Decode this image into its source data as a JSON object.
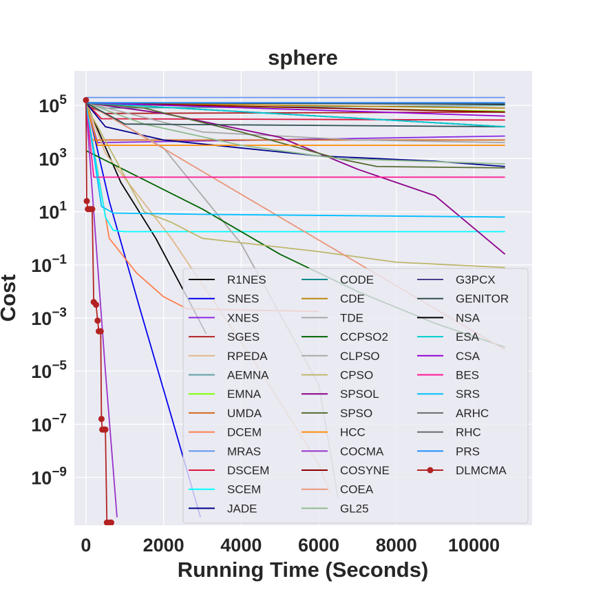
{
  "chart_data": {
    "type": "line",
    "title": "sphere",
    "xlabel": "Running Time (Seconds)",
    "ylabel": "Cost",
    "xlim": [
      -300,
      11500
    ],
    "ylim_log10": [
      -10.8,
      6.3
    ],
    "yscale": "log",
    "xticks": [
      0,
      2000,
      4000,
      6000,
      8000,
      10000
    ],
    "yticks": [
      {
        "exp": 5,
        "base": "10",
        "sup": "5"
      },
      {
        "exp": 3,
        "base": "10",
        "sup": "3"
      },
      {
        "exp": 1,
        "base": "10",
        "sup": "1"
      },
      {
        "exp": -1,
        "base": "10",
        "sup": "−1"
      },
      {
        "exp": -3,
        "base": "10",
        "sup": "−3"
      },
      {
        "exp": -5,
        "base": "10",
        "sup": "−5"
      },
      {
        "exp": -7,
        "base": "10",
        "sup": "−7"
      },
      {
        "exp": -9,
        "base": "10",
        "sup": "−9"
      }
    ],
    "grid": true,
    "legend_position": "lower-right",
    "legend_columns": 3,
    "series": [
      {
        "name": "R1NES",
        "color": "#000000",
        "points": [
          [
            0,
            5.1
          ],
          [
            900,
            2.1
          ],
          [
            1800,
            0
          ],
          [
            2600,
            -2.2
          ],
          [
            3100,
            -3.6
          ]
        ]
      },
      {
        "name": "SNES",
        "color": "#0000ee",
        "points": [
          [
            0,
            5.2
          ],
          [
            600,
            1.4
          ],
          [
            1400,
            -2.7
          ],
          [
            2200,
            -6.7
          ],
          [
            2950,
            -10.5
          ]
        ]
      },
      {
        "name": "XNES",
        "color": "#8a2be2",
        "points": [
          [
            0,
            5.1
          ],
          [
            300,
            3.6
          ],
          [
            10800,
            3.85
          ]
        ]
      },
      {
        "name": "SGES",
        "color": "#b22222",
        "points": [
          [
            0,
            5.0
          ],
          [
            500,
            4.7
          ],
          [
            10800,
            4.75
          ]
        ]
      },
      {
        "name": "RPEDA",
        "color": "#deb887",
        "points": [
          [
            0,
            5.1
          ],
          [
            500,
            3.2
          ],
          [
            2200,
            0
          ],
          [
            4500,
            -5
          ],
          [
            6000,
            -8.5
          ],
          [
            6300,
            -9.6
          ]
        ]
      },
      {
        "name": "AEMNA",
        "color": "#5f9ea0",
        "points": [
          [
            0,
            5.1
          ],
          [
            500,
            4.9
          ],
          [
            10800,
            5.0
          ]
        ]
      },
      {
        "name": "EMNA",
        "color": "#7fff00",
        "points": [
          [
            0,
            5.1
          ],
          [
            200,
            5.05
          ],
          [
            10800,
            4.78
          ]
        ]
      },
      {
        "name": "UMDA",
        "color": "#d2691e",
        "points": [
          [
            0,
            5.1
          ],
          [
            150,
            3.7
          ],
          [
            10800,
            3.7
          ]
        ]
      },
      {
        "name": "DCEM",
        "color": "#ff7f50",
        "points": [
          [
            0,
            5.1
          ],
          [
            600,
            0
          ],
          [
            1300,
            -1.3
          ],
          [
            2000,
            -2.2
          ],
          [
            2600,
            -2.65
          ],
          [
            4000,
            -2.7
          ],
          [
            6000,
            -2.75
          ]
        ]
      },
      {
        "name": "MRAS",
        "color": "#6495ed",
        "points": [
          [
            0,
            5.3
          ],
          [
            10800,
            5.3
          ]
        ]
      },
      {
        "name": "DSCEM",
        "color": "#dc143c",
        "points": [
          [
            0,
            5.1
          ],
          [
            400,
            4.5
          ],
          [
            10800,
            4.45
          ]
        ]
      },
      {
        "name": "SCEM",
        "color": "#00ffff",
        "points": [
          [
            0,
            5.0
          ],
          [
            500,
            0.8
          ],
          [
            700,
            0.3
          ],
          [
            1000,
            0.25
          ],
          [
            10800,
            0.25
          ]
        ]
      },
      {
        "name": "JADE",
        "color": "#00008b",
        "points": [
          [
            0,
            5.1
          ],
          [
            500,
            4.2
          ],
          [
            2000,
            3.7
          ],
          [
            6000,
            3.1
          ],
          [
            9000,
            2.9
          ],
          [
            10800,
            2.7
          ]
        ]
      },
      {
        "name": "CODE",
        "color": "#008b8b",
        "points": [
          [
            0,
            5.1
          ],
          [
            10800,
            4.2
          ]
        ]
      },
      {
        "name": "CDE",
        "color": "#b8860b",
        "points": [
          [
            0,
            5.1
          ],
          [
            10800,
            4.9
          ]
        ]
      },
      {
        "name": "TDE",
        "color": "#a9a9a9",
        "points": [
          [
            0,
            5.1
          ],
          [
            2000,
            3.4
          ],
          [
            4000,
            -0.2
          ],
          [
            6000,
            -5.5
          ],
          [
            6500,
            -9.8
          ]
        ]
      },
      {
        "name": "CCPSO2",
        "color": "#006400",
        "points": [
          [
            0,
            3.3
          ],
          [
            1500,
            2.2
          ],
          [
            3000,
            1.1
          ],
          [
            5000,
            -0.6
          ],
          [
            7000,
            -2
          ],
          [
            9000,
            -3.2
          ],
          [
            10800,
            -4.1
          ]
        ]
      },
      {
        "name": "CLPSO",
        "color": "#a9a9a9",
        "points": [
          [
            0,
            5.1
          ],
          [
            3000,
            4.0
          ],
          [
            7000,
            3.7
          ],
          [
            10800,
            3.6
          ]
        ]
      },
      {
        "name": "CPSO",
        "color": "#bdb76b",
        "points": [
          [
            0,
            5.0
          ],
          [
            1500,
            1.0
          ],
          [
            2200,
            0.6
          ],
          [
            3000,
            0
          ],
          [
            6000,
            -0.5
          ],
          [
            8000,
            -0.9
          ],
          [
            10800,
            -1.1
          ]
        ]
      },
      {
        "name": "SPSOL",
        "color": "#8b008b",
        "points": [
          [
            0,
            5.1
          ],
          [
            2000,
            4.7
          ],
          [
            5000,
            3.8
          ],
          [
            7000,
            2.6
          ],
          [
            9000,
            1.6
          ],
          [
            10800,
            -0.6
          ]
        ]
      },
      {
        "name": "SPSO",
        "color": "#556b2f",
        "points": [
          [
            0,
            5.1
          ],
          [
            1500,
            4.9
          ],
          [
            4000,
            4.0
          ],
          [
            6500,
            3.0
          ],
          [
            7500,
            2.7
          ],
          [
            10800,
            2.65
          ]
        ]
      },
      {
        "name": "HCC",
        "color": "#ff8c00",
        "points": [
          [
            0,
            5.1
          ],
          [
            300,
            3.5
          ],
          [
            10800,
            3.5
          ]
        ]
      },
      {
        "name": "COCMA",
        "color": "#9932cc",
        "points": [
          [
            0,
            5.0
          ],
          [
            250,
            0
          ],
          [
            500,
            -5
          ],
          [
            800,
            -10.5
          ]
        ]
      },
      {
        "name": "COSYNE",
        "color": "#8b0000",
        "points": [
          [
            0,
            5.1
          ],
          [
            10800,
            4.75
          ]
        ]
      },
      {
        "name": "COEA",
        "color": "#e9967a",
        "points": [
          [
            0,
            5.1
          ],
          [
            10800,
            -4.2
          ]
        ]
      },
      {
        "name": "GL25",
        "color": "#8fbc8f",
        "points": [
          [
            0,
            5.1
          ],
          [
            1500,
            4.3
          ],
          [
            4000,
            3.5
          ],
          [
            6500,
            3.0
          ],
          [
            10800,
            2.8
          ]
        ]
      },
      {
        "name": "G3PCX",
        "color": "#483d8b",
        "points": [
          [
            0,
            5.1
          ],
          [
            10800,
            4.2
          ]
        ]
      },
      {
        "name": "GENITOR",
        "color": "#2f4f4f",
        "points": [
          [
            0,
            5.1
          ],
          [
            1000,
            4.3
          ],
          [
            10800,
            4.2
          ]
        ]
      },
      {
        "name": "NSA",
        "color": "#000000",
        "points": [
          [
            0,
            5.1
          ],
          [
            10800,
            5.05
          ]
        ]
      },
      {
        "name": "ESA",
        "color": "#00ced1",
        "points": [
          [
            0,
            5.1
          ],
          [
            10800,
            4.2
          ]
        ]
      },
      {
        "name": "CSA",
        "color": "#9400d3",
        "points": [
          [
            0,
            5.1
          ],
          [
            10800,
            4.6
          ]
        ]
      },
      {
        "name": "BES",
        "color": "#ff1493",
        "points": [
          [
            0,
            5.1
          ],
          [
            200,
            2.3
          ],
          [
            10800,
            2.3
          ]
        ]
      },
      {
        "name": "SRS",
        "color": "#00bfff",
        "points": [
          [
            0,
            5.1
          ],
          [
            400,
            1.2
          ],
          [
            700,
            0.95
          ],
          [
            3000,
            0.9
          ],
          [
            10800,
            0.8
          ]
        ]
      },
      {
        "name": "ARHC",
        "color": "#696969",
        "points": [
          [
            0,
            5.1
          ],
          [
            10800,
            5.1
          ]
        ]
      },
      {
        "name": "RHC",
        "color": "#696969",
        "points": [
          [
            0,
            5.1
          ],
          [
            10800,
            5.08
          ]
        ]
      },
      {
        "name": "PRS",
        "color": "#1e90ff",
        "points": [
          [
            0,
            5.1
          ],
          [
            10800,
            5.1
          ]
        ]
      },
      {
        "name": "DLMCMA",
        "color": "#b22222",
        "marker": "circle",
        "points": [
          [
            0,
            5.2
          ],
          [
            20,
            1.4
          ],
          [
            50,
            1.1
          ],
          [
            100,
            1.1
          ],
          [
            160,
            1.1
          ],
          [
            200,
            -2.4
          ],
          [
            260,
            -2.5
          ],
          [
            300,
            -3.1
          ],
          [
            330,
            -3.5
          ],
          [
            380,
            -3.5
          ],
          [
            400,
            -6.8
          ],
          [
            420,
            -7.2
          ],
          [
            460,
            -7.2
          ],
          [
            500,
            -7.2
          ],
          [
            540,
            -10.7
          ],
          [
            600,
            -10.7
          ],
          [
            650,
            -10.7
          ]
        ]
      }
    ]
  }
}
